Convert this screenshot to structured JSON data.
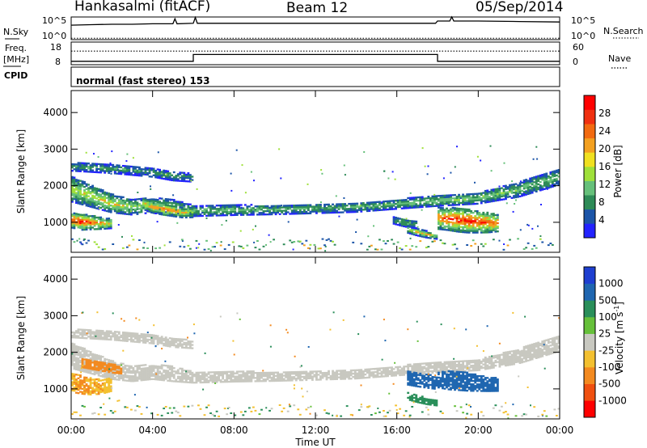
{
  "header": {
    "station": "Hankasalmi (fitACF)",
    "beam": "Beam 12",
    "date": "05/Sep/2014"
  },
  "chart_data": [
    {
      "id": "nsky-panel",
      "type": "line",
      "left_label": "N.Sky",
      "right_label": "N.Search",
      "left_ticks": [
        "10^5",
        "10^0"
      ],
      "right_ticks": [
        "10^5",
        "10^0"
      ],
      "xlim": [
        0,
        24
      ],
      "ylim": [
        0,
        5
      ],
      "series": [
        {
          "style": "solid",
          "x": [
            0,
            1,
            2,
            3,
            4,
            5,
            5.1,
            5.2,
            6,
            6.1,
            6.2,
            8,
            10,
            12,
            14,
            16,
            17.9,
            18,
            18.6,
            18.7,
            18.8,
            20,
            22,
            24
          ],
          "y": [
            3.2,
            3.3,
            3.4,
            3.4,
            3.5,
            3.5,
            4.6,
            3.5,
            3.6,
            4.9,
            3.6,
            3.6,
            3.6,
            3.6,
            3.6,
            3.6,
            3.6,
            4.1,
            4.1,
            5.0,
            4.1,
            4.1,
            4.0,
            3.9
          ]
        },
        {
          "style": "dotted",
          "x": [
            0,
            24
          ],
          "y": [
            0.3,
            0.3
          ]
        }
      ]
    },
    {
      "id": "freq-panel",
      "type": "line",
      "left_label_top": "Freq.",
      "left_label_mid": "[MHz]",
      "left_label_bottom": "CPID",
      "right_label": "Nave",
      "left_ticks": [
        "18",
        "8"
      ],
      "right_ticks": [
        "60",
        "0"
      ],
      "xlim": [
        0,
        24
      ],
      "ylim": [
        8,
        18
      ],
      "series": [
        {
          "style": "solid",
          "x": [
            0,
            6,
            6,
            18,
            18,
            24
          ],
          "y": [
            9.5,
            9.5,
            12.5,
            12.5,
            9.5,
            9.5
          ]
        },
        {
          "style": "dotted",
          "x": [
            0,
            24
          ],
          "y": [
            14.0,
            14.0
          ]
        }
      ]
    },
    {
      "id": "cpid-panel",
      "type": "table",
      "text": "normal (fast stereo) 153"
    },
    {
      "id": "power-panel",
      "type": "heatmap",
      "ylabel": "Slant Range [km]",
      "xlim": [
        0,
        24
      ],
      "ylim": [
        180,
        4600
      ],
      "yticks": [
        "1000",
        "2000",
        "3000",
        "4000"
      ],
      "ytick_values": [
        1000,
        2000,
        3000,
        4000
      ],
      "colorbar_label": "Power [dB]",
      "colorbar_ticks": [
        "28",
        "24",
        "20",
        "16",
        "12",
        "8",
        "4"
      ],
      "colorbar_colors": [
        "#2323ff",
        "#1c55a8",
        "#2e8b57",
        "#66c07a",
        "#9fe03a",
        "#f0e020",
        "#f3a020",
        "#f26a10",
        "#f03010",
        "#ff0000"
      ],
      "bands": [
        {
          "x": [
            0,
            1,
            2,
            3,
            4,
            5,
            6,
            8,
            10,
            12,
            14,
            16,
            18,
            20,
            22,
            24
          ],
          "y": [
            1900,
            1700,
            1500,
            1400,
            1450,
            1400,
            1300,
            1320,
            1330,
            1360,
            1400,
            1480,
            1580,
            1640,
            1880,
            2240
          ],
          "w": [
            700,
            600,
            500,
            420,
            400,
            420,
            300,
            280,
            260,
            260,
            270,
            260,
            300,
            300,
            400,
            450
          ],
          "p": [
            18,
            20,
            21,
            18,
            17,
            16,
            14,
            14,
            13,
            13,
            13,
            14,
            15,
            16,
            15,
            14
          ]
        },
        {
          "x": [
            0,
            0.5,
            1,
            1.5,
            2
          ],
          "y": [
            1050,
            1000,
            980,
            960,
            950
          ],
          "w": [
            420,
            450,
            380,
            320,
            260
          ],
          "p": [
            29,
            30,
            27,
            24,
            21
          ]
        },
        {
          "x": [
            3.5,
            4,
            4.5,
            5,
            5.5,
            6
          ],
          "y": [
            1500,
            1400,
            1350,
            1300,
            1250,
            1250
          ],
          "w": [
            300,
            320,
            320,
            300,
            280,
            260
          ],
          "p": [
            22,
            24,
            26,
            25,
            22,
            20
          ]
        },
        {
          "x": [
            18,
            18.5,
            19,
            19.5,
            20,
            20.5,
            21
          ],
          "y": [
            1100,
            1080,
            1050,
            1020,
            1000,
            980,
            960
          ],
          "w": [
            600,
            620,
            650,
            640,
            600,
            550,
            450
          ],
          "p": [
            24,
            28,
            30,
            29,
            30,
            28,
            26
          ]
        },
        {
          "x": [
            0,
            2,
            4,
            5,
            6
          ],
          "y": [
            2500,
            2450,
            2350,
            2250,
            2200
          ],
          "w": [
            220,
            250,
            250,
            250,
            220
          ],
          "p": [
            12,
            12,
            11,
            11,
            10
          ]
        },
        {
          "x": [
            16.5,
            17,
            17.5,
            18
          ],
          "y": [
            800,
            720,
            650,
            600
          ],
          "w": [
            200,
            200,
            180,
            150
          ],
          "p": [
            20,
            22,
            20,
            18
          ]
        },
        {
          "x": [
            15.8,
            16.2,
            16.6,
            17
          ],
          "y": [
            1050,
            1000,
            950,
            920
          ],
          "w": [
            200,
            220,
            220,
            200
          ],
          "p": [
            10,
            12,
            13,
            12
          ]
        }
      ]
    },
    {
      "id": "velocity-panel",
      "type": "heatmap",
      "ylabel": "Slant Range [km]",
      "xlabel": "Time UT",
      "xlim": [
        0,
        24
      ],
      "ylim": [
        180,
        4600
      ],
      "xticks": [
        "00:00",
        "04:00",
        "08:00",
        "12:00",
        "16:00",
        "20:00",
        "00:00"
      ],
      "xtick_values": [
        0,
        4,
        8,
        12,
        16,
        20,
        24
      ],
      "yticks": [
        "1000",
        "2000",
        "3000",
        "4000"
      ],
      "ytick_values": [
        1000,
        2000,
        3000,
        4000
      ],
      "colorbar_label": "Velocity [m s^-1]",
      "colorbar_ticks": [
        "1000",
        "500",
        "100",
        "25",
        "-25",
        "-100",
        "-500",
        "-1000"
      ],
      "colorbar_colors": [
        "#1e3fd0",
        "#1f66b0",
        "#2a8f5a",
        "#66c03a",
        "#c8c8c0",
        "#f3c030",
        "#f38a20",
        "#f05010",
        "#ff0000"
      ],
      "bands": [
        {
          "x": [
            0,
            1,
            2,
            3,
            4,
            5,
            6,
            8,
            10,
            12,
            14,
            16,
            18,
            20,
            22,
            24
          ],
          "y": [
            1900,
            1700,
            1500,
            1400,
            1450,
            1400,
            1300,
            1320,
            1330,
            1360,
            1400,
            1480,
            1580,
            1640,
            1880,
            2240
          ],
          "w": [
            700,
            600,
            500,
            420,
            400,
            420,
            300,
            280,
            260,
            260,
            270,
            260,
            300,
            300,
            400,
            450
          ],
          "p": [
            0,
            0,
            0,
            0,
            0,
            0,
            0,
            0,
            0,
            0,
            0,
            0,
            0,
            0,
            0,
            0
          ]
        },
        {
          "x": [
            0,
            2,
            4,
            5,
            6
          ],
          "y": [
            2500,
            2450,
            2350,
            2250,
            2200
          ],
          "w": [
            220,
            250,
            250,
            250,
            220
          ],
          "p": [
            0,
            0,
            0,
            0,
            0
          ]
        },
        {
          "x": [
            0,
            0.5,
            1,
            1.5,
            2
          ],
          "y": [
            1150,
            1100,
            1050,
            1050,
            1100
          ],
          "w": [
            500,
            500,
            450,
            400,
            350
          ],
          "p": [
            -80,
            -120,
            -100,
            -90,
            -70
          ]
        },
        {
          "x": [
            0.5,
            1,
            1.5,
            2,
            2.5
          ],
          "y": [
            1700,
            1650,
            1600,
            1550,
            1500
          ],
          "w": [
            250,
            250,
            250,
            250,
            200
          ],
          "p": [
            -300,
            -400,
            -350,
            -250,
            -200
          ]
        },
        {
          "x": [
            16.5,
            17,
            17.5,
            18
          ],
          "y": [
            1300,
            1250,
            1200,
            1150
          ],
          "w": [
            400,
            400,
            380,
            350
          ],
          "p": [
            220,
            260,
            240,
            200
          ]
        },
        {
          "x": [
            18,
            18.5,
            19,
            19.5,
            20,
            20.5,
            21
          ],
          "y": [
            1250,
            1220,
            1200,
            1180,
            1150,
            1120,
            1100
          ],
          "w": [
            450,
            500,
            500,
            500,
            450,
            400,
            350
          ],
          "p": [
            260,
            300,
            250,
            240,
            230,
            220,
            200
          ]
        },
        {
          "x": [
            16.5,
            17,
            17.5,
            18
          ],
          "y": [
            800,
            720,
            650,
            600
          ],
          "w": [
            200,
            200,
            180,
            150
          ],
          "p": [
            60,
            80,
            70,
            60
          ]
        }
      ]
    }
  ]
}
